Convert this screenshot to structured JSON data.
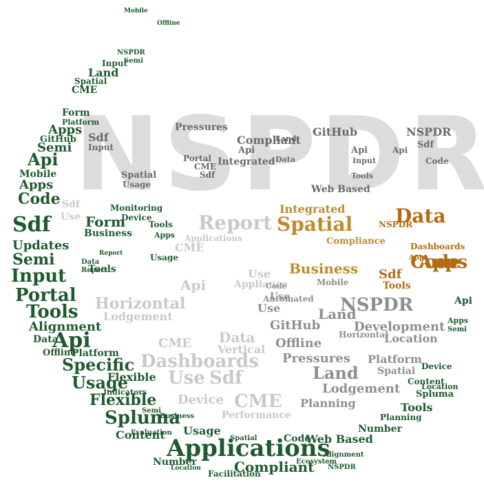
{
  "words": {
    "nspdr_top": "NSPDR",
    "applications": "Applications",
    "spluma": "Spluma",
    "flexible": "Flexible",
    "usage": "Usage",
    "specific": "Specific",
    "api": "Api",
    "alignment": "Alignment",
    "tools": "Tools",
    "portal": "Portal",
    "input": "Input",
    "semi": "Semi",
    "updates": "Updates",
    "sdf": "Sdf",
    "code": "Code",
    "apps": "Apps",
    "mobile": "Mobile",
    "github": "GitHub",
    "data": "Data",
    "form": "Form",
    "report": "Report",
    "spatial": "Spatial",
    "business": "Business",
    "land": "Land",
    "dashboards": "Dashboards",
    "cme": "CME",
    "compliant": "Compliant",
    "pressures": "Pressures",
    "lodgement": "Lodgement",
    "development": "Development",
    "web_based": "Web Based",
    "horizontal": "Horizontal",
    "device": "Device",
    "performance": "Performance",
    "vertical": "Vertical",
    "integrated": "Integrated",
    "planning": "Planning",
    "evaluation": "Evaluation",
    "location": "Location",
    "platform": "Platform",
    "offline": "Offline",
    "monitoring": "Monitoring",
    "number": "Number",
    "indicators": "Indicators",
    "content": "Content",
    "facilitation": "Facilitation",
    "ecosystem": "Ecosystem",
    "appliance": "Appliance",
    "automated": "Automated",
    "compliance": "Compliance",
    "use": "Use"
  },
  "colors": {
    "green": "#1e5a2e",
    "gray": "#8e8e8e",
    "light_gray": "#c9c9c9",
    "gold": "#c08a2c",
    "amber": "#b36b12"
  }
}
